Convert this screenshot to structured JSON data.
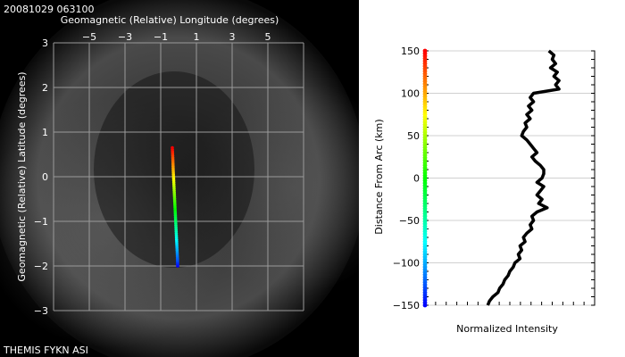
{
  "header": {
    "timestamp": "20081029 063100"
  },
  "footer": {
    "caption": "THEMIS FYKN ASI"
  },
  "colors": {
    "background": "#000000",
    "grid": "#9a9a9a",
    "profile": "#000000"
  },
  "chart_data": [
    {
      "type": "scatter",
      "xlabel": "Geomagnetic (Relative) Longitude (degrees)",
      "ylabel": "Geomagnetic (Relative) Latitude (degrees)",
      "xlim": [
        -7,
        7
      ],
      "ylim": [
        -3,
        3
      ],
      "x_ticks": [
        -5,
        -3,
        -1,
        1,
        3,
        5
      ],
      "y_ticks": [
        -3,
        -2,
        -1,
        0,
        1,
        2,
        3
      ],
      "grid": true,
      "colormap": "rainbow (blue at south end to red at north end)",
      "series": [
        {
          "points": [
            [
              -0.35,
              0.65
            ],
            [
              -0.32,
              0.4
            ],
            [
              -0.3,
              0.15
            ],
            [
              -0.27,
              -0.1
            ],
            [
              -0.24,
              -0.35
            ],
            [
              -0.21,
              -0.6
            ],
            [
              -0.18,
              -0.85
            ],
            [
              -0.15,
              -1.1
            ],
            [
              -0.12,
              -1.35
            ],
            [
              -0.09,
              -1.6
            ],
            [
              -0.06,
              -1.85
            ],
            [
              -0.05,
              -2.0
            ]
          ]
        }
      ]
    },
    {
      "type": "line",
      "xlabel": "Normalized Intensity",
      "ylabel": "Distance From Arc (km)",
      "ylim": [
        -150,
        150
      ],
      "y_ticks": [
        -150,
        -100,
        -50,
        0,
        50,
        100,
        150
      ],
      "grid": true,
      "profile": [
        [
          150,
          0.73
        ],
        [
          145,
          0.76
        ],
        [
          140,
          0.75
        ],
        [
          135,
          0.77
        ],
        [
          130,
          0.74
        ],
        [
          125,
          0.78
        ],
        [
          120,
          0.76
        ],
        [
          115,
          0.79
        ],
        [
          110,
          0.77
        ],
        [
          105,
          0.79
        ],
        [
          100,
          0.64
        ],
        [
          95,
          0.62
        ],
        [
          90,
          0.64
        ],
        [
          85,
          0.61
        ],
        [
          80,
          0.63
        ],
        [
          75,
          0.6
        ],
        [
          70,
          0.62
        ],
        [
          65,
          0.59
        ],
        [
          60,
          0.6
        ],
        [
          55,
          0.58
        ],
        [
          50,
          0.57
        ],
        [
          45,
          0.6
        ],
        [
          40,
          0.62
        ],
        [
          35,
          0.64
        ],
        [
          30,
          0.66
        ],
        [
          25,
          0.63
        ],
        [
          20,
          0.65
        ],
        [
          15,
          0.68
        ],
        [
          10,
          0.7
        ],
        [
          5,
          0.7
        ],
        [
          0,
          0.69
        ],
        [
          -5,
          0.66
        ],
        [
          -10,
          0.7
        ],
        [
          -15,
          0.68
        ],
        [
          -20,
          0.66
        ],
        [
          -25,
          0.69
        ],
        [
          -30,
          0.67
        ],
        [
          -35,
          0.72
        ],
        [
          -40,
          0.66
        ],
        [
          -45,
          0.63
        ],
        [
          -50,
          0.64
        ],
        [
          -55,
          0.62
        ],
        [
          -60,
          0.63
        ],
        [
          -65,
          0.6
        ],
        [
          -70,
          0.58
        ],
        [
          -75,
          0.59
        ],
        [
          -80,
          0.56
        ],
        [
          -85,
          0.57
        ],
        [
          -90,
          0.55
        ],
        [
          -95,
          0.56
        ],
        [
          -100,
          0.53
        ],
        [
          -105,
          0.52
        ],
        [
          -110,
          0.5
        ],
        [
          -115,
          0.49
        ],
        [
          -120,
          0.47
        ],
        [
          -125,
          0.46
        ],
        [
          -130,
          0.44
        ],
        [
          -135,
          0.43
        ],
        [
          -140,
          0.4
        ],
        [
          -145,
          0.38
        ],
        [
          -150,
          0.37
        ]
      ]
    }
  ]
}
